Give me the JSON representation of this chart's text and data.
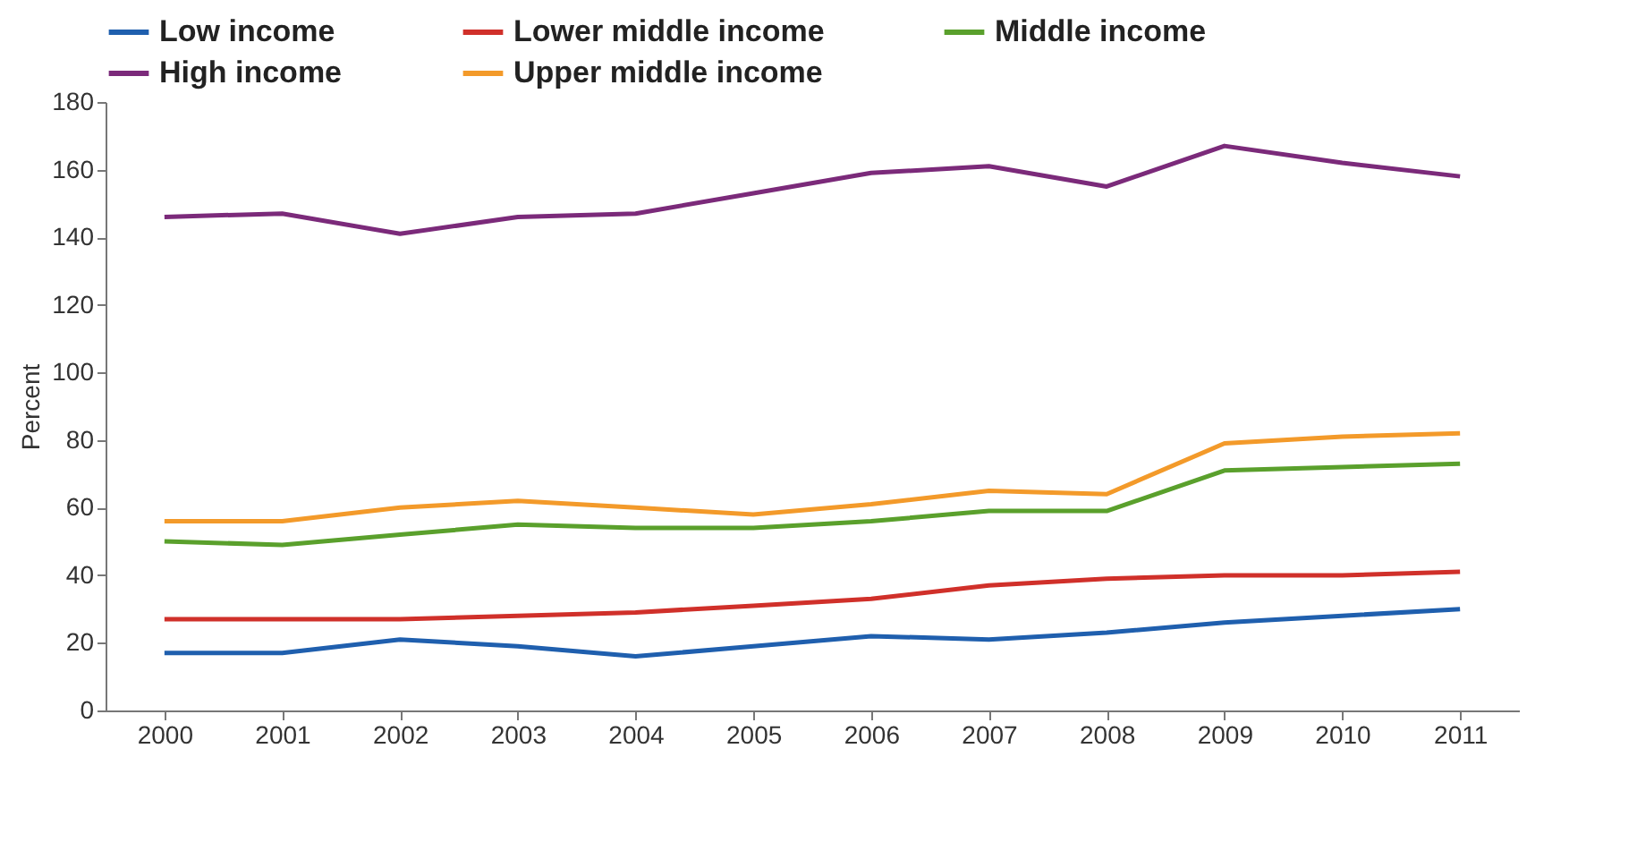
{
  "chart_data": {
    "type": "line",
    "ylabel": "Percent",
    "categories": [
      "2000",
      "2001",
      "2002",
      "2003",
      "2004",
      "2005",
      "2006",
      "2007",
      "2008",
      "2009",
      "2010",
      "2011"
    ],
    "ylim": [
      0,
      180
    ],
    "yticks": [
      0,
      20,
      40,
      60,
      80,
      100,
      120,
      140,
      160,
      180
    ],
    "grid": false,
    "legend": "top",
    "marker": "none",
    "line_style": "solid",
    "series": [
      {
        "name": "Low income",
        "color": "#1f5fae",
        "values": [
          17,
          17,
          21,
          19,
          16,
          19,
          22,
          21,
          23,
          26,
          28,
          30
        ]
      },
      {
        "name": "Lower middle income",
        "color": "#d0302a",
        "values": [
          27,
          27,
          27,
          28,
          29,
          31,
          33,
          37,
          39,
          40,
          40,
          41
        ]
      },
      {
        "name": "Middle income",
        "color": "#5aa02c",
        "values": [
          50,
          49,
          52,
          55,
          54,
          54,
          56,
          59,
          59,
          71,
          72,
          73
        ]
      },
      {
        "name": "High income",
        "color": "#7b2a7a",
        "values": [
          146,
          147,
          141,
          146,
          147,
          153,
          159,
          161,
          155,
          167,
          162,
          158
        ]
      },
      {
        "name": "Upper middle income",
        "color": "#f39a2a",
        "values": [
          56,
          56,
          60,
          62,
          60,
          58,
          61,
          65,
          64,
          79,
          81,
          82
        ]
      }
    ]
  }
}
